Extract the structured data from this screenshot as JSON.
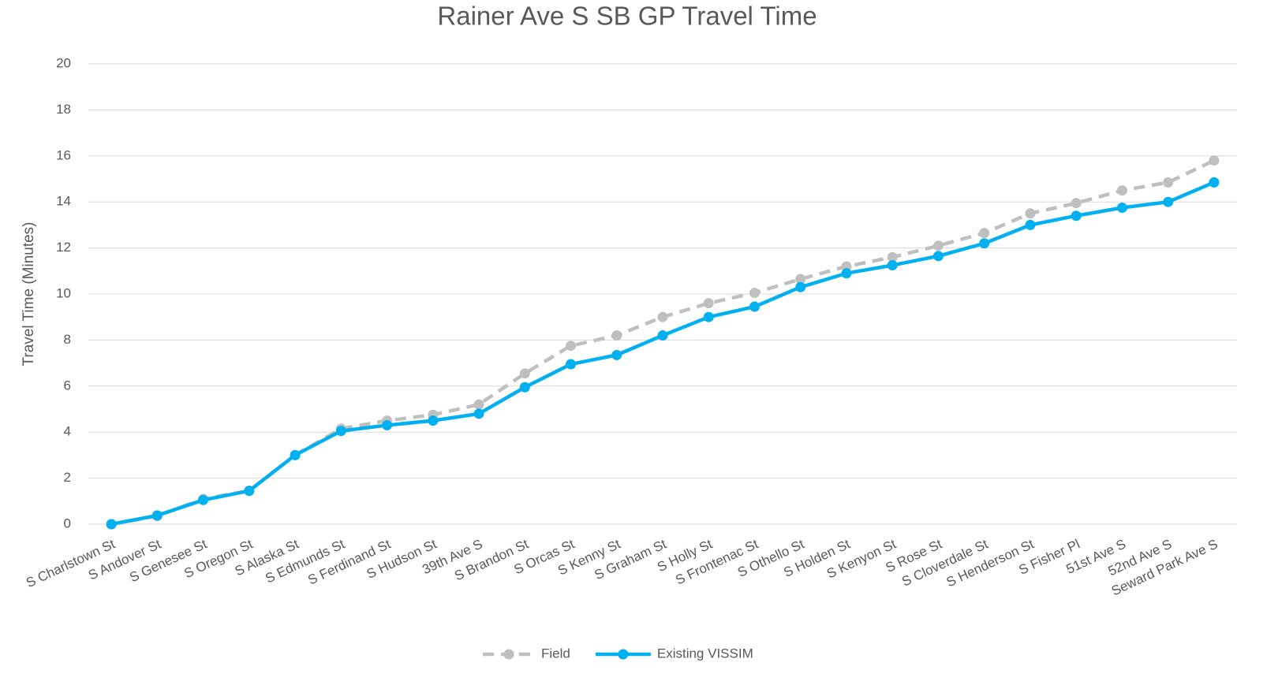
{
  "chart_data": {
    "type": "line",
    "title": "Rainer Ave S SB GP Travel Time",
    "y_label": "Travel Time (Minutes)",
    "categories": [
      "S Charlstown St",
      "S Andover St",
      "S Genesee St",
      "S Oregon St",
      "S Alaska St",
      "S Edmunds St",
      "S Ferdinand St",
      "S Hudson St",
      "39th Ave S",
      "S Brandon St",
      "S Orcas St",
      "S Kenny St",
      "S Graham St",
      "S Holly St",
      "S Frontenac St",
      "S Othello St",
      "S Holden St",
      "S Kenyon St",
      "S Rose St",
      "S Cloverdale St",
      "S Henderson St",
      "S Fisher Pl",
      "51st Ave S",
      "52nd Ave S",
      "Seward Park Ave S"
    ],
    "series": [
      {
        "name": "Field",
        "color": "#bfbfbf",
        "dashed": true,
        "values": [
          0,
          0.35,
          1.1,
          1.45,
          3.0,
          4.15,
          4.5,
          4.75,
          5.2,
          6.55,
          7.75,
          8.2,
          9.0,
          9.6,
          10.05,
          10.65,
          11.2,
          11.6,
          12.1,
          12.65,
          13.5,
          13.95,
          14.5,
          14.85,
          15.8
        ]
      },
      {
        "name": "Existing VISSIM",
        "color": "#00b0f0",
        "dashed": false,
        "values": [
          0,
          0.38,
          1.05,
          1.45,
          3.0,
          4.05,
          4.3,
          4.5,
          4.8,
          5.95,
          6.95,
          7.35,
          8.2,
          9.0,
          9.45,
          10.3,
          10.9,
          11.25,
          11.65,
          12.2,
          13.0,
          13.4,
          13.75,
          14.0,
          14.85
        ]
      }
    ],
    "ylim": [
      0,
      20
    ],
    "yticks": [
      0,
      2,
      4,
      6,
      8,
      10,
      12,
      14,
      16,
      18,
      20
    ],
    "grid": true,
    "legend": "bottom"
  }
}
